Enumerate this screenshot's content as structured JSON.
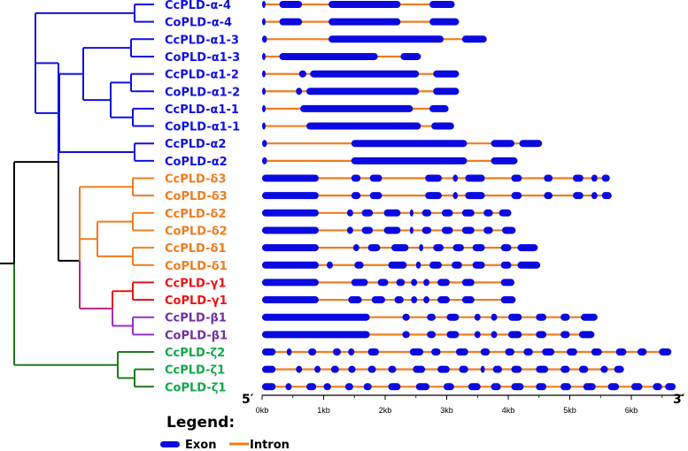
{
  "colors": {
    "alpha": "#1010e0",
    "delta": "#f07c1e",
    "gamma": "#ee1111",
    "beta": "#7030a0",
    "zeta": "#10a848",
    "exon": "#0a0ae0",
    "intron": "#f07c1e",
    "root": "#000000",
    "tree_delta_gamma": "#c0208a",
    "tree_beta": "#9a30c8",
    "tree_zeta": "#207a20",
    "tree_gamma": "#ee1111"
  },
  "genes": [
    {
      "name": "CcPLD-α-4",
      "group": "alpha",
      "length": 3.13,
      "exons": [
        [
          0.0,
          0.05
        ],
        [
          0.28,
          0.65
        ],
        [
          1.08,
          2.25
        ],
        [
          2.72,
          3.13
        ]
      ]
    },
    {
      "name": "CoPLD-α-4",
      "group": "alpha",
      "length": 3.2,
      "exons": [
        [
          0.0,
          0.05
        ],
        [
          0.28,
          0.65
        ],
        [
          1.08,
          2.25
        ],
        [
          2.72,
          3.2
        ]
      ]
    },
    {
      "name": "CcPLD-α1-3",
      "group": "alpha",
      "length": 3.65,
      "exons": [
        [
          0.0,
          0.08
        ],
        [
          1.08,
          2.95
        ],
        [
          3.25,
          3.65
        ]
      ]
    },
    {
      "name": "CoPLD-α1-3",
      "group": "alpha",
      "length": 2.58,
      "exons": [
        [
          0.0,
          0.05
        ],
        [
          0.28,
          1.88
        ],
        [
          2.25,
          2.58
        ]
      ]
    },
    {
      "name": "CcPLD-α1-2",
      "group": "alpha",
      "length": 3.2,
      "exons": [
        [
          0.0,
          0.05
        ],
        [
          0.6,
          0.72
        ],
        [
          0.78,
          2.55
        ],
        [
          2.78,
          3.2
        ]
      ]
    },
    {
      "name": "CoPLD-α1-2",
      "group": "alpha",
      "length": 3.2,
      "exons": [
        [
          0.0,
          0.05
        ],
        [
          0.55,
          0.65
        ],
        [
          0.72,
          2.55
        ],
        [
          2.78,
          3.2
        ]
      ]
    },
    {
      "name": "CcPLD-α1-1",
      "group": "alpha",
      "length": 3.03,
      "exons": [
        [
          0.0,
          0.05
        ],
        [
          0.62,
          2.45
        ],
        [
          2.72,
          3.03
        ]
      ]
    },
    {
      "name": "CoPLD-α1-1",
      "group": "alpha",
      "length": 3.12,
      "exons": [
        [
          0.0,
          0.05
        ],
        [
          0.72,
          2.58
        ],
        [
          2.75,
          3.12
        ]
      ]
    },
    {
      "name": "CcPLD-α2",
      "group": "alpha",
      "length": 4.55,
      "exons": [
        [
          0.0,
          0.08
        ],
        [
          1.45,
          3.33
        ],
        [
          3.72,
          4.1
        ],
        [
          4.18,
          4.55
        ]
      ]
    },
    {
      "name": "CoPLD-α2",
      "group": "alpha",
      "length": 4.15,
      "exons": [
        [
          0.0,
          0.08
        ],
        [
          1.45,
          3.33
        ],
        [
          3.72,
          4.15
        ]
      ]
    },
    {
      "name": "CcPLD-δ3",
      "group": "delta",
      "length": 5.65,
      "exons": [
        [
          0.0,
          0.92
        ],
        [
          1.45,
          1.6
        ],
        [
          1.75,
          1.95
        ],
        [
          2.65,
          2.92
        ],
        [
          3.1,
          3.18
        ],
        [
          3.3,
          3.62
        ],
        [
          4.05,
          4.22
        ],
        [
          4.58,
          4.72
        ],
        [
          5.05,
          5.22
        ],
        [
          5.35,
          5.45
        ],
        [
          5.52,
          5.65
        ]
      ]
    },
    {
      "name": "CoPLD-δ3",
      "group": "delta",
      "length": 5.68,
      "exons": [
        [
          0.0,
          0.92
        ],
        [
          1.45,
          1.6
        ],
        [
          1.75,
          1.95
        ],
        [
          2.65,
          2.92
        ],
        [
          3.1,
          3.18
        ],
        [
          3.3,
          3.62
        ],
        [
          4.05,
          4.22
        ],
        [
          4.58,
          4.72
        ],
        [
          5.05,
          5.22
        ],
        [
          5.35,
          5.45
        ],
        [
          5.52,
          5.68
        ]
      ]
    },
    {
      "name": "CcPLD-δ2",
      "group": "delta",
      "length": 4.05,
      "exons": [
        [
          0.0,
          0.92
        ],
        [
          1.38,
          1.48
        ],
        [
          1.62,
          1.8
        ],
        [
          1.98,
          2.25
        ],
        [
          2.4,
          2.46
        ],
        [
          2.6,
          2.75
        ],
        [
          2.92,
          3.1
        ],
        [
          3.25,
          3.45
        ],
        [
          3.6,
          3.75
        ],
        [
          3.85,
          4.05
        ]
      ]
    },
    {
      "name": "CoPLD-δ2",
      "group": "delta",
      "length": 4.12,
      "exons": [
        [
          0.0,
          0.92
        ],
        [
          1.38,
          1.48
        ],
        [
          1.62,
          1.8
        ],
        [
          1.98,
          2.25
        ],
        [
          2.4,
          2.46
        ],
        [
          2.6,
          2.75
        ],
        [
          2.92,
          3.1
        ],
        [
          3.25,
          3.45
        ],
        [
          3.6,
          3.75
        ],
        [
          3.9,
          4.12
        ]
      ]
    },
    {
      "name": "CcPLD-δ1",
      "group": "delta",
      "length": 4.48,
      "exons": [
        [
          0.0,
          0.92
        ],
        [
          1.48,
          1.58
        ],
        [
          1.72,
          1.92
        ],
        [
          2.1,
          2.38
        ],
        [
          2.55,
          2.62
        ],
        [
          2.78,
          2.95
        ],
        [
          3.1,
          3.28
        ],
        [
          3.42,
          3.62
        ],
        [
          3.88,
          4.05
        ],
        [
          4.15,
          4.48
        ]
      ]
    },
    {
      "name": "CoPLD-δ1",
      "group": "delta",
      "length": 4.52,
      "exons": [
        [
          0.0,
          0.92
        ],
        [
          1.05,
          1.15
        ],
        [
          1.5,
          1.65
        ],
        [
          2.05,
          2.35
        ],
        [
          2.5,
          2.58
        ],
        [
          2.72,
          2.92
        ],
        [
          3.08,
          3.25
        ],
        [
          3.42,
          3.62
        ],
        [
          3.88,
          4.05
        ],
        [
          4.15,
          4.52
        ]
      ]
    },
    {
      "name": "CcPLD-γ1",
      "group": "gamma",
      "length": 4.1,
      "exons": [
        [
          0.0,
          0.92
        ],
        [
          1.45,
          1.72
        ],
        [
          1.88,
          2.05
        ],
        [
          2.18,
          2.32
        ],
        [
          2.42,
          2.52
        ],
        [
          2.62,
          2.72
        ],
        [
          2.85,
          3.05
        ],
        [
          3.25,
          3.45
        ],
        [
          3.88,
          4.1
        ]
      ]
    },
    {
      "name": "CoPLD-γ1",
      "group": "gamma",
      "length": 4.12,
      "exons": [
        [
          0.0,
          0.92
        ],
        [
          1.4,
          1.62
        ],
        [
          1.78,
          2.0
        ],
        [
          2.15,
          2.3
        ],
        [
          2.42,
          2.52
        ],
        [
          2.62,
          2.72
        ],
        [
          2.85,
          3.05
        ],
        [
          3.25,
          3.45
        ],
        [
          3.88,
          4.12
        ]
      ]
    },
    {
      "name": "CcPLD-β1",
      "group": "beta",
      "length": 5.45,
      "exons": [
        [
          0.0,
          1.75
        ],
        [
          2.28,
          2.4
        ],
        [
          2.68,
          2.82
        ],
        [
          3.0,
          3.2
        ],
        [
          3.45,
          3.55
        ],
        [
          3.72,
          3.82
        ],
        [
          4.0,
          4.22
        ],
        [
          4.45,
          4.62
        ],
        [
          4.85,
          5.0
        ],
        [
          5.18,
          5.45
        ]
      ]
    },
    {
      "name": "CoPLD-β1",
      "group": "beta",
      "length": 5.4,
      "exons": [
        [
          0.0,
          1.75
        ],
        [
          2.28,
          2.4
        ],
        [
          2.68,
          2.82
        ],
        [
          3.0,
          3.2
        ],
        [
          3.45,
          3.55
        ],
        [
          3.72,
          3.82
        ],
        [
          4.0,
          4.22
        ],
        [
          4.45,
          4.62
        ],
        [
          4.85,
          5.0
        ],
        [
          5.15,
          5.4
        ]
      ]
    },
    {
      "name": "CcPLD-ζ2",
      "group": "zeta",
      "length": 6.65,
      "exons": [
        [
          0.0,
          0.22
        ],
        [
          0.4,
          0.48
        ],
        [
          0.75,
          0.88
        ],
        [
          1.15,
          1.28
        ],
        [
          1.4,
          1.5
        ],
        [
          1.72,
          1.9
        ],
        [
          2.4,
          2.62
        ],
        [
          2.75,
          2.9
        ],
        [
          3.15,
          3.35
        ],
        [
          3.55,
          3.7
        ],
        [
          3.95,
          4.1
        ],
        [
          4.25,
          4.4
        ],
        [
          4.55,
          4.75
        ],
        [
          4.95,
          5.12
        ],
        [
          5.35,
          5.52
        ],
        [
          5.75,
          5.92
        ],
        [
          6.1,
          6.25
        ],
        [
          6.45,
          6.65
        ]
      ]
    },
    {
      "name": "CcPLD-ζ1",
      "group": "zeta",
      "length": 5.88,
      "exons": [
        [
          0.0,
          0.22
        ],
        [
          0.55,
          0.65
        ],
        [
          0.85,
          0.95
        ],
        [
          1.12,
          1.25
        ],
        [
          1.4,
          1.52
        ],
        [
          1.72,
          1.85
        ],
        [
          2.05,
          2.18
        ],
        [
          2.45,
          2.65
        ],
        [
          2.85,
          3.05
        ],
        [
          3.2,
          3.35
        ],
        [
          3.55,
          3.62
        ],
        [
          3.75,
          3.9
        ],
        [
          4.05,
          4.22
        ],
        [
          4.45,
          4.65
        ],
        [
          4.85,
          5.0
        ],
        [
          5.15,
          5.3
        ],
        [
          5.5,
          5.62
        ],
        [
          5.72,
          5.88
        ]
      ]
    },
    {
      "name": "CoPLD-ζ1",
      "group": "zeta",
      "length": 6.72,
      "exons": [
        [
          0.0,
          0.22
        ],
        [
          0.38,
          0.48
        ],
        [
          0.72,
          0.88
        ],
        [
          1.0,
          1.12
        ],
        [
          1.35,
          1.48
        ],
        [
          1.65,
          1.78
        ],
        [
          2.05,
          2.25
        ],
        [
          2.5,
          2.72
        ],
        [
          2.95,
          3.12
        ],
        [
          3.35,
          3.55
        ],
        [
          3.72,
          3.88
        ],
        [
          4.05,
          4.25
        ],
        [
          4.45,
          4.62
        ],
        [
          4.85,
          5.02
        ],
        [
          5.22,
          5.42
        ],
        [
          5.62,
          5.8
        ],
        [
          6.0,
          6.18
        ],
        [
          6.35,
          6.5
        ],
        [
          6.55,
          6.72
        ]
      ]
    }
  ],
  "axis": {
    "start_label": "5′",
    "end_label": "3′",
    "ticks": [
      {
        "value": 0,
        "label": "0kb"
      },
      {
        "value": 1,
        "label": "1kb"
      },
      {
        "value": 2,
        "label": "2kb"
      },
      {
        "value": 3,
        "label": "3kb"
      },
      {
        "value": 4,
        "label": "4kb"
      },
      {
        "value": 5,
        "label": "5kb"
      },
      {
        "value": 6,
        "label": "6kb"
      }
    ],
    "max": 6.85
  },
  "legend": {
    "title": "Legend:",
    "exon_label": "Exon",
    "intron_label": "Intron"
  }
}
